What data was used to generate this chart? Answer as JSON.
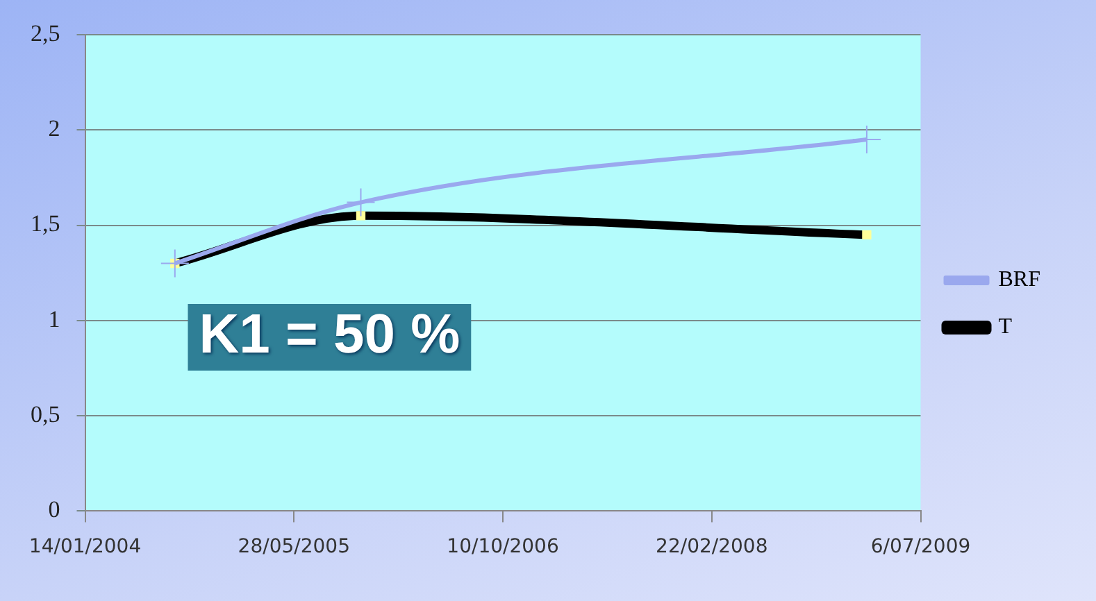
{
  "chart_data": {
    "type": "line",
    "x": [
      "2004-08-16",
      "2005-11-04",
      "2009-02-27"
    ],
    "series": [
      {
        "name": "BRF",
        "color": "#9aa8ee",
        "values": [
          1.3,
          1.62,
          1.95
        ],
        "marker": "cross"
      },
      {
        "name": "T",
        "color": "#000000",
        "values": [
          1.3,
          1.55,
          1.45
        ],
        "marker": "square"
      }
    ],
    "xlim": [
      "2004-01-14",
      "2009-07-06"
    ],
    "xticks": [
      {
        "value": "2004-01-14",
        "label": "14/01/2004"
      },
      {
        "value": "2005-05-28",
        "label": "28/05/2005"
      },
      {
        "value": "2006-10-10",
        "label": "10/10/2006"
      },
      {
        "value": "2008-02-22",
        "label": "22/02/2008"
      },
      {
        "value": "2009-07-06",
        "label": "6/07/2009"
      }
    ],
    "ylim": [
      0,
      2.5
    ],
    "yticks": [
      0,
      {
        "value": 0.5,
        "label": "0,5"
      },
      1,
      {
        "value": 1.5,
        "label": "1,5"
      },
      2,
      {
        "value": 2.5,
        "label": "2,5"
      }
    ],
    "grid": "y",
    "legend": "right",
    "annotations": [
      "K1 = 50 %"
    ]
  }
}
